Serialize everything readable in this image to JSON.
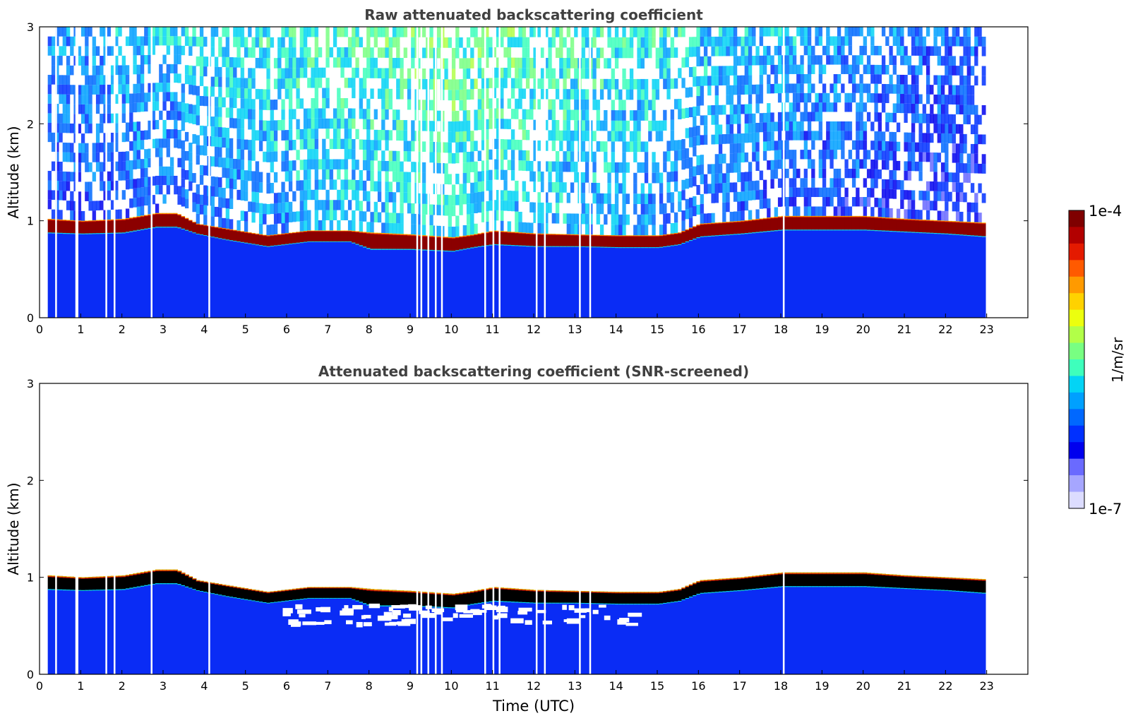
{
  "chart_data": [
    {
      "type": "heatmap",
      "title": "Raw attenuated backscattering coefficient",
      "xlabel": "",
      "ylabel": "Altitude (km)",
      "xlim": [
        0,
        24
      ],
      "ylim": [
        0,
        3
      ],
      "x_ticks": [
        "0",
        "1",
        "2",
        "3",
        "4",
        "5",
        "6",
        "7",
        "8",
        "9",
        "10",
        "11",
        "12",
        "13",
        "14",
        "15",
        "16",
        "17",
        "18",
        "19",
        "20",
        "21",
        "22",
        "23"
      ],
      "y_ticks": [
        "0",
        "1",
        "2",
        "3"
      ],
      "data_time_range": [
        0.2,
        22.95
      ],
      "gaps_utc": [
        0.38,
        0.87,
        0.9,
        1.6,
        1.8,
        2.7,
        4.1,
        9.15,
        9.25,
        9.42,
        9.6,
        9.75,
        10.8,
        11.0,
        11.15,
        12.05,
        12.25,
        13.1,
        13.35,
        18.05
      ],
      "cloud_top_km": [
        [
          0.2,
          1.02
        ],
        [
          1.0,
          1.0
        ],
        [
          2.0,
          1.02
        ],
        [
          2.8,
          1.08
        ],
        [
          3.3,
          1.08
        ],
        [
          3.8,
          0.97
        ],
        [
          4.5,
          0.92
        ],
        [
          5.5,
          0.85
        ],
        [
          6.5,
          0.9
        ],
        [
          7.5,
          0.9
        ],
        [
          8.0,
          0.88
        ],
        [
          9.0,
          0.86
        ],
        [
          10.0,
          0.83
        ],
        [
          10.5,
          0.86
        ],
        [
          11.0,
          0.9
        ],
        [
          12.0,
          0.87
        ],
        [
          13.0,
          0.86
        ],
        [
          14.0,
          0.85
        ],
        [
          15.0,
          0.85
        ],
        [
          15.5,
          0.88
        ],
        [
          16.0,
          0.97
        ],
        [
          17.0,
          1.0
        ],
        [
          18.0,
          1.05
        ],
        [
          19.0,
          1.05
        ],
        [
          20.0,
          1.05
        ],
        [
          21.0,
          1.02
        ],
        [
          22.0,
          1.0
        ],
        [
          22.95,
          0.98
        ]
      ],
      "cloud_base_km": [
        [
          0.2,
          0.87
        ],
        [
          1.0,
          0.86
        ],
        [
          2.0,
          0.87
        ],
        [
          2.8,
          0.93
        ],
        [
          3.3,
          0.93
        ],
        [
          3.8,
          0.86
        ],
        [
          4.5,
          0.8
        ],
        [
          5.5,
          0.73
        ],
        [
          6.5,
          0.78
        ],
        [
          7.5,
          0.78
        ],
        [
          8.0,
          0.7
        ],
        [
          9.0,
          0.7
        ],
        [
          10.0,
          0.68
        ],
        [
          10.5,
          0.72
        ],
        [
          11.0,
          0.75
        ],
        [
          12.0,
          0.73
        ],
        [
          13.0,
          0.73
        ],
        [
          14.0,
          0.72
        ],
        [
          15.0,
          0.72
        ],
        [
          15.5,
          0.75
        ],
        [
          16.0,
          0.83
        ],
        [
          17.0,
          0.86
        ],
        [
          18.0,
          0.9
        ],
        [
          19.0,
          0.9
        ],
        [
          20.0,
          0.9
        ],
        [
          21.0,
          0.88
        ],
        [
          22.0,
          0.86
        ],
        [
          22.95,
          0.83
        ]
      ]
    },
    {
      "type": "heatmap",
      "title": "Attenuated backscattering coefficient (SNR-screened)",
      "xlabel": "Time (UTC)",
      "ylabel": "Altitude (km)",
      "xlim": [
        0,
        24
      ],
      "ylim": [
        0,
        3
      ],
      "x_ticks": [
        "0",
        "1",
        "2",
        "3",
        "4",
        "5",
        "6",
        "7",
        "8",
        "9",
        "10",
        "11",
        "12",
        "13",
        "14",
        "15",
        "16",
        "17",
        "18",
        "19",
        "20",
        "21",
        "22",
        "23"
      ],
      "y_ticks": [
        "0",
        "1",
        "2",
        "3"
      ],
      "data_time_range": [
        0.2,
        22.95
      ],
      "note_masked_region_utc": [
        5.8,
        14.5
      ],
      "note_masked_region_km": [
        0.5,
        0.7
      ]
    }
  ],
  "colorbar": {
    "label": "1/m/sr",
    "max_label": "1e-4",
    "min_label": "1e-7",
    "colors": [
      "#7f0000",
      "#b20000",
      "#e41a00",
      "#ff5a00",
      "#ff9a00",
      "#ffd200",
      "#ecff0e",
      "#b2ff48",
      "#78ff82",
      "#3effbc",
      "#03d4f5",
      "#00a0ff",
      "#0068ff",
      "#0030ff",
      "#0000ee",
      "#6a6aff",
      "#a6a6ff",
      "#dcdcff"
    ]
  }
}
